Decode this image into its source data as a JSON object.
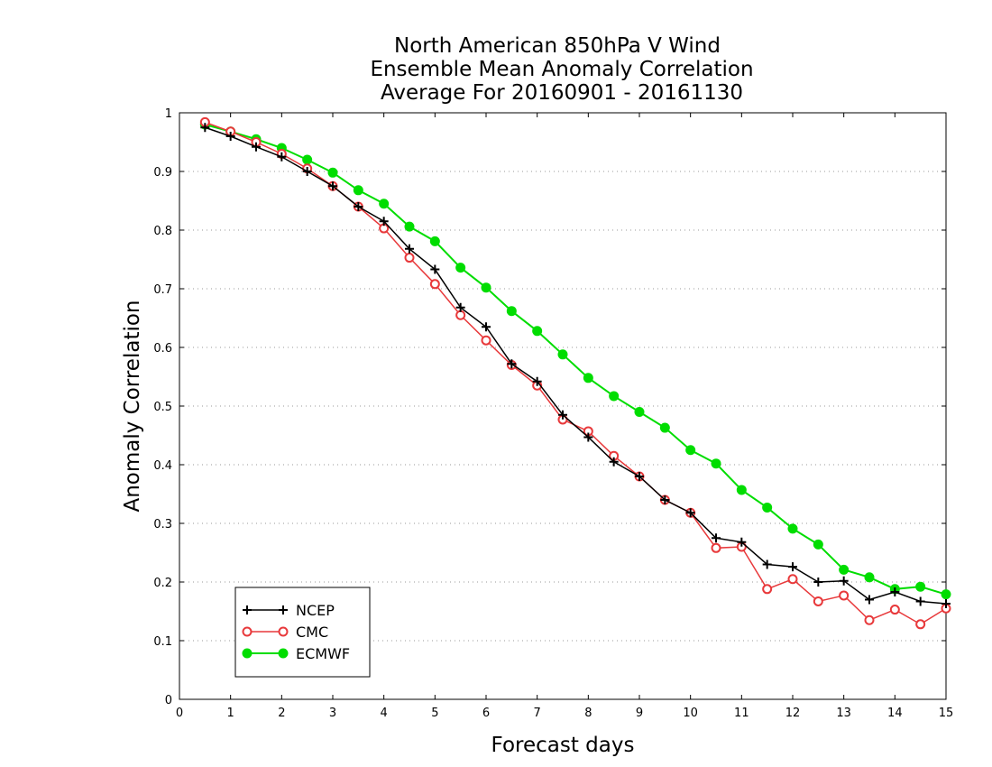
{
  "chart_data": {
    "type": "line",
    "title": [
      "North American 850hPa V Wind",
      "Ensemble Mean Anomaly Correlation",
      "Average For 20160901 - 20161130"
    ],
    "xlabel": "Forecast days",
    "ylabel": "Anomaly Correlation",
    "xlim": [
      0,
      15
    ],
    "ylim": [
      0,
      1
    ],
    "xticks": [
      "0",
      "1",
      "2",
      "3",
      "4",
      "5",
      "6",
      "7",
      "8",
      "9",
      "10",
      "11",
      "12",
      "13",
      "14",
      "15"
    ],
    "yticks": [
      "0",
      "0.1",
      "0.2",
      "0.3",
      "0.4",
      "0.5",
      "0.6",
      "0.7",
      "0.8",
      "0.9",
      "1"
    ],
    "grid": true,
    "legend_position": "bottom-left",
    "x": [
      0.5,
      1,
      1.5,
      2,
      2.5,
      3,
      3.5,
      4,
      4.5,
      5,
      5.5,
      6,
      6.5,
      7,
      7.5,
      8,
      8.5,
      9,
      9.5,
      10,
      10.5,
      11,
      11.5,
      12,
      12.5,
      13,
      13.5,
      14,
      14.5,
      15
    ],
    "series": [
      {
        "name": "NCEP",
        "color": "#000000",
        "marker": "plus",
        "values": [
          0.975,
          0.96,
          0.942,
          0.925,
          0.9,
          0.875,
          0.84,
          0.815,
          0.768,
          0.733,
          0.668,
          0.635,
          0.572,
          0.542,
          0.485,
          0.447,
          0.405,
          0.38,
          0.34,
          0.318,
          0.275,
          0.268,
          0.23,
          0.226,
          0.2,
          0.202,
          0.17,
          0.183,
          0.167,
          0.163
        ]
      },
      {
        "name": "CMC",
        "color": "#e8393b",
        "marker": "open-circle",
        "values": [
          0.984,
          0.968,
          0.95,
          0.93,
          0.905,
          0.875,
          0.84,
          0.803,
          0.753,
          0.708,
          0.655,
          0.612,
          0.57,
          0.535,
          0.477,
          0.457,
          0.415,
          0.38,
          0.34,
          0.318,
          0.258,
          0.26,
          0.188,
          0.205,
          0.167,
          0.177,
          0.135,
          0.153,
          0.128,
          0.155
        ]
      },
      {
        "name": "ECMWF",
        "color": "#00dd00",
        "marker": "filled-circle",
        "values": [
          0.98,
          0.968,
          0.955,
          0.94,
          0.92,
          0.898,
          0.868,
          0.845,
          0.806,
          0.781,
          0.736,
          0.702,
          0.662,
          0.628,
          0.588,
          0.548,
          0.517,
          0.49,
          0.463,
          0.425,
          0.402,
          0.357,
          0.327,
          0.291,
          0.264,
          0.221,
          0.208,
          0.188,
          0.192,
          0.179
        ]
      }
    ]
  }
}
